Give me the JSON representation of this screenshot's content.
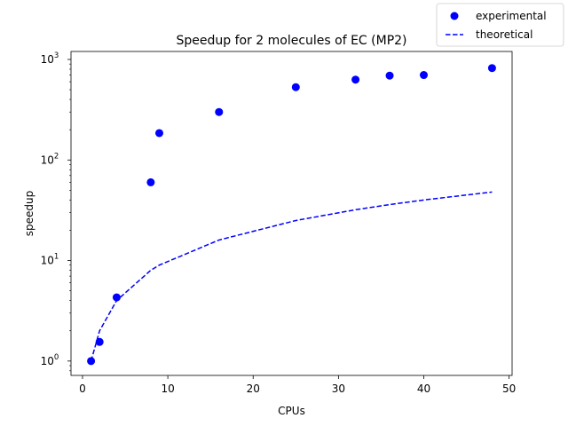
{
  "chart_data": {
    "type": "scatter",
    "title": "Speedup for 2 molecules of EC (MP2)",
    "xlabel": "CPUs",
    "ylabel": "speedup",
    "xlim": [
      -1.35,
      50.35
    ],
    "ylim": [
      0.72,
      1200
    ],
    "yscale": "log",
    "grid": false,
    "legend_placement": "top-right (outside axes)",
    "xticks": [
      0,
      10,
      20,
      30,
      40,
      50
    ],
    "yticks": [
      {
        "value": 1,
        "base": "10",
        "exp": "0"
      },
      {
        "value": 10,
        "base": "10",
        "exp": "1"
      },
      {
        "value": 100,
        "base": "10",
        "exp": "2"
      },
      {
        "value": 1000,
        "base": "10",
        "exp": "3"
      }
    ],
    "series": [
      {
        "name": "experimental",
        "kind": "scatter",
        "color": "#0000ff",
        "x": [
          1,
          2,
          4,
          8,
          9,
          16,
          25,
          32,
          36,
          40,
          48
        ],
        "y": [
          1,
          1.55,
          4.3,
          60,
          185,
          300,
          530,
          630,
          690,
          700,
          820
        ]
      },
      {
        "name": "theoretical",
        "kind": "line",
        "style": "dashed",
        "color": "#0000ff",
        "x": [
          1,
          2,
          4,
          8,
          9,
          16,
          25,
          32,
          36,
          40,
          48
        ],
        "y": [
          1,
          2,
          4,
          8,
          9,
          16,
          25,
          32,
          36,
          40,
          48
        ]
      }
    ]
  }
}
